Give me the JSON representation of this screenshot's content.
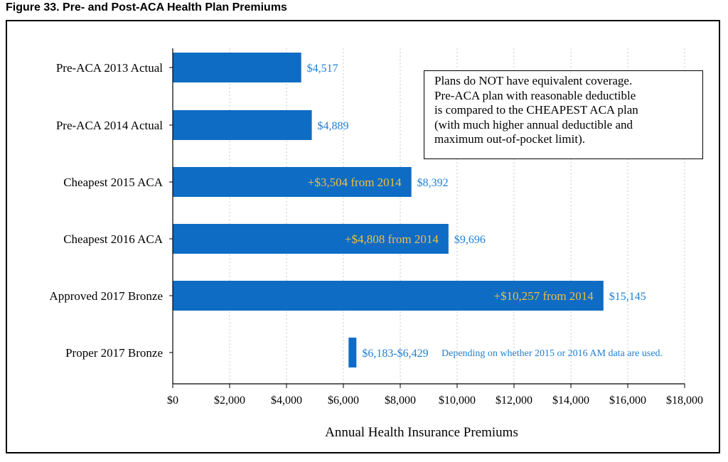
{
  "figure_title": "Figure 33.  Pre- and Post-ACA Health Plan Premiums",
  "note_lines": [
    "Plans do NOT have equivalent coverage.",
    "Pre-ACA plan with reasonable deductible",
    "is compared to the CHEAPEST ACA plan",
    "(with much higher annual deductible and",
    "maximum out-of-pocket limit)."
  ],
  "colors": {
    "bar": "#0e6cc4",
    "value_label": "#1f7fd4",
    "inner_label": "#f0c040",
    "axis": "#000000",
    "grid": "#c8c8c8"
  },
  "chart_data": {
    "type": "bar",
    "orientation": "horizontal",
    "xlabel": "Annual Health Insurance Premiums",
    "xlim": [
      0,
      18000
    ],
    "xticks": [
      0,
      2000,
      4000,
      6000,
      8000,
      10000,
      12000,
      14000,
      16000,
      18000
    ],
    "xtick_labels": [
      "$0",
      "$2,000",
      "$4,000",
      "$6,000",
      "$8,000",
      "$10,000",
      "$12,000",
      "$14,000",
      "$16,000",
      "$18,000"
    ],
    "grid": "vertical dotted",
    "categories": [
      "Pre-ACA 2013 Actual",
      "Pre-ACA 2014 Actual",
      "Cheapest 2015 ACA",
      "Cheapest 2016 ACA",
      "Approved 2017 Bronze",
      "Proper 2017 Bronze"
    ],
    "bars": [
      {
        "start": 0,
        "end": 4517,
        "value_label": "$4,517",
        "inner_label": ""
      },
      {
        "start": 0,
        "end": 4889,
        "value_label": "$4,889",
        "inner_label": ""
      },
      {
        "start": 0,
        "end": 8392,
        "value_label": "$8,392",
        "inner_label": "+$3,504 from 2014"
      },
      {
        "start": 0,
        "end": 9696,
        "value_label": "$9,696",
        "inner_label": "+$4,808 from 2014"
      },
      {
        "start": 0,
        "end": 15145,
        "value_label": "$15,145",
        "inner_label": "+$10,257 from 2014"
      },
      {
        "start": 6183,
        "end": 6429,
        "value_label": "$6,183-$6,429",
        "inner_label": ""
      }
    ],
    "annotation": "Depending on whether 2015 or 2016 AM data are used."
  }
}
